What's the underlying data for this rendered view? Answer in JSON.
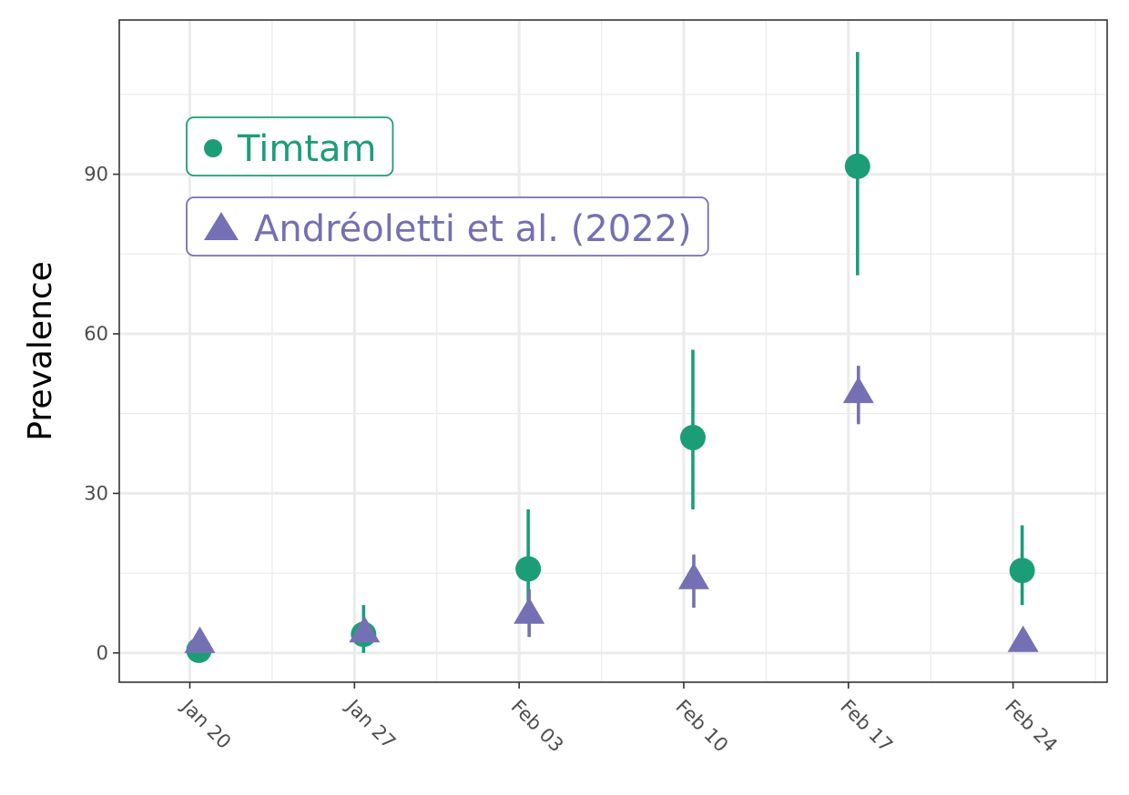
{
  "chart_data": {
    "type": "scatter",
    "title": "",
    "xlabel": "",
    "ylabel": "Prevalence",
    "x_axis": {
      "type": "date",
      "range": [
        "2020-01-17",
        "2020-02-28"
      ],
      "ticks": [
        {
          "date": "2020-01-20",
          "label": "Jan 20"
        },
        {
          "date": "2020-01-27",
          "label": "Jan 27"
        },
        {
          "date": "2020-02-03",
          "label": "Feb 03"
        },
        {
          "date": "2020-02-10",
          "label": "Feb 10"
        },
        {
          "date": "2020-02-17",
          "label": "Feb 17"
        },
        {
          "date": "2020-02-24",
          "label": "Feb 24"
        }
      ]
    },
    "y_axis": {
      "range": [
        -5.5,
        119
      ],
      "ticks": [
        0,
        30,
        60,
        90
      ],
      "tick_labels": [
        "0",
        "30",
        "60",
        "90"
      ]
    },
    "grid": true,
    "legend_position": "top-left",
    "series": [
      {
        "name": "Timtam",
        "marker": "circle",
        "color": "#1b9e77",
        "points": [
          {
            "x": "2020-01-20",
            "y": 0.5,
            "lo": null,
            "hi": null
          },
          {
            "x": "2020-01-27",
            "y": 3.5,
            "lo": 0,
            "hi": 9
          },
          {
            "x": "2020-02-03",
            "y": 15.8,
            "lo": 6,
            "hi": 27
          },
          {
            "x": "2020-02-10",
            "y": 40.5,
            "lo": 27,
            "hi": 57
          },
          {
            "x": "2020-02-17",
            "y": 91.5,
            "lo": 71,
            "hi": 113
          },
          {
            "x": "2020-02-24",
            "y": 15.5,
            "lo": 9,
            "hi": 24
          }
        ]
      },
      {
        "name": "Andréoletti et al. (2022)",
        "marker": "triangle",
        "color": "#7570b3",
        "points": [
          {
            "x": "2020-01-20",
            "y": 2,
            "lo": null,
            "hi": null
          },
          {
            "x": "2020-01-27",
            "y": 4,
            "lo": 2,
            "hi": 6
          },
          {
            "x": "2020-02-03",
            "y": 7.5,
            "lo": 3,
            "hi": 12
          },
          {
            "x": "2020-02-10",
            "y": 14,
            "lo": 8.5,
            "hi": 18.5
          },
          {
            "x": "2020-02-17",
            "y": 49,
            "lo": 43,
            "hi": 54
          },
          {
            "x": "2020-02-24",
            "y": 2.2,
            "lo": null,
            "hi": null
          }
        ]
      }
    ]
  }
}
